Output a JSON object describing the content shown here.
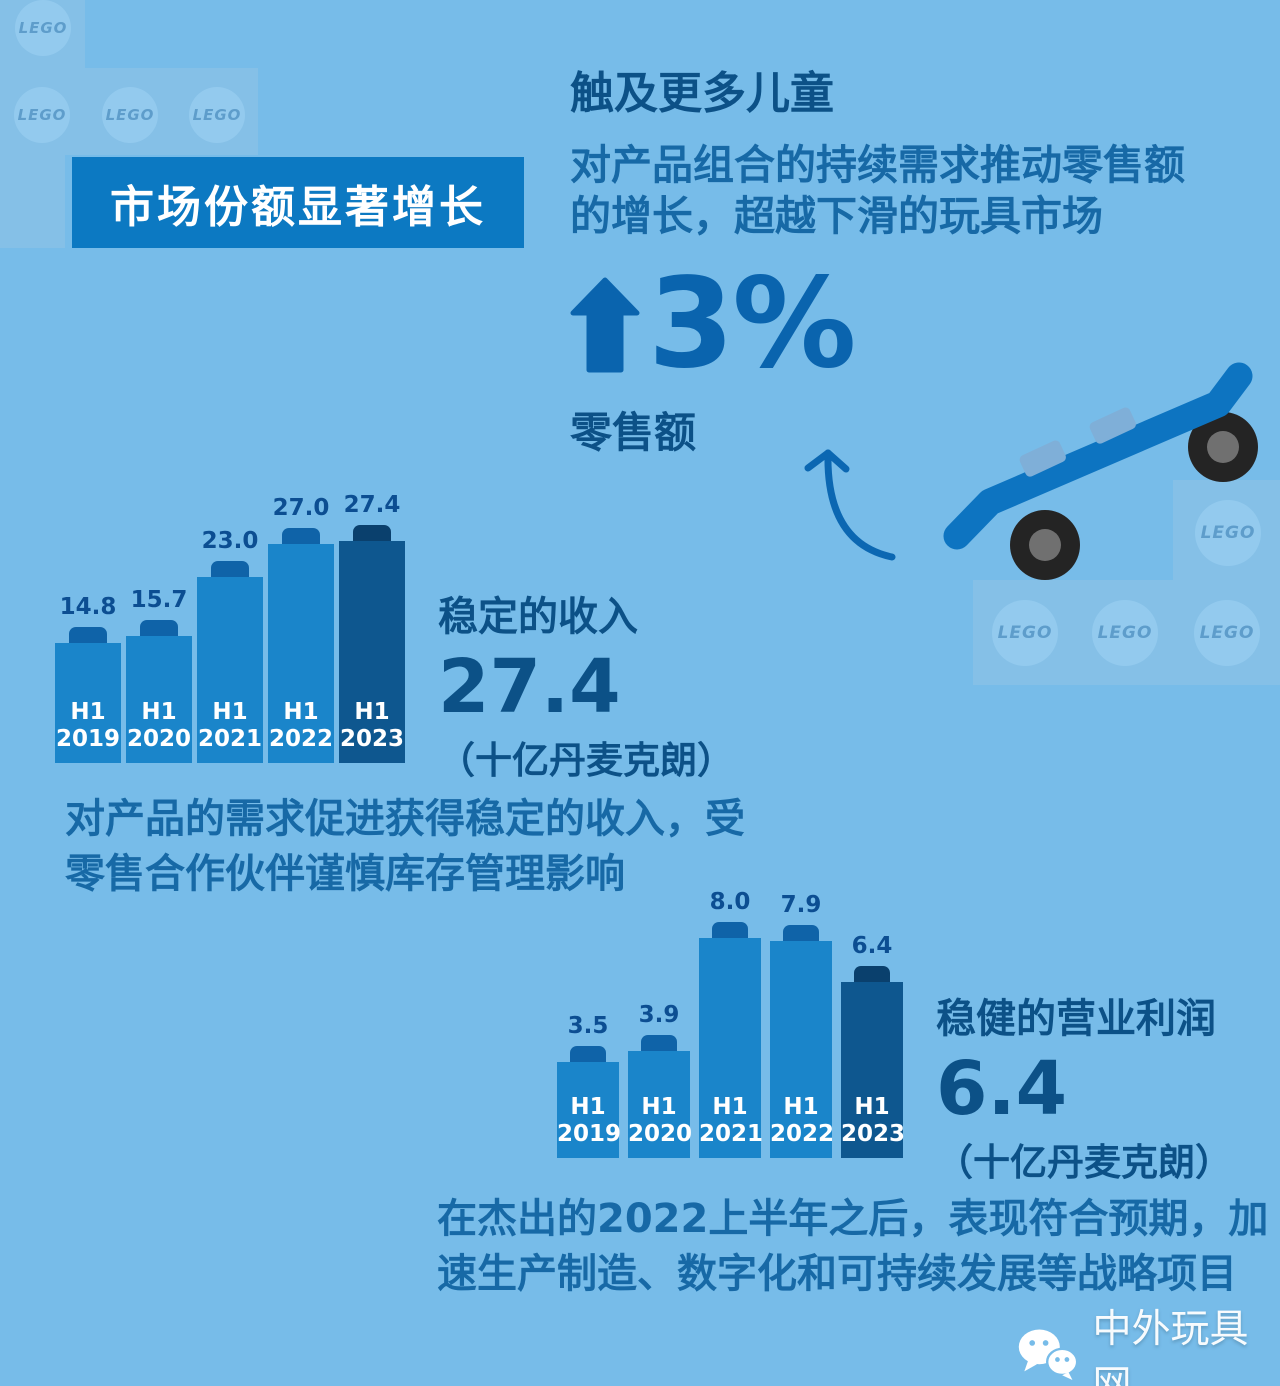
{
  "background_color": "#77BCE9",
  "brand_stud_text": "LEGO",
  "badge": {
    "label": "市场份额显著增长",
    "bg_color": "#0C79C2"
  },
  "reach": {
    "heading": "触及更多儿童",
    "body_lines": [
      "对产品组合的持续需求推动零售额",
      "的增长，超越下滑的玩具市场"
    ],
    "stat_direction": "up",
    "stat_value": "3%",
    "stat_caption": "零售额",
    "accent_color": "#0A64AE"
  },
  "chart_data": [
    {
      "id": "revenue",
      "type": "bar",
      "title": "稳定的收入",
      "categories": [
        "H1 2019",
        "H1 2020",
        "H1 2021",
        "H1 2022",
        "H1 2023"
      ],
      "values": [
        14.8,
        15.7,
        23.0,
        27.0,
        27.4
      ],
      "value_labels": [
        "14.8",
        "15.7",
        "23.0",
        "27.0",
        "27.4"
      ],
      "highlight_value": "27.4",
      "unit_label": "（十亿丹麦克朗）",
      "note_lines": [
        "对产品的需求促进获得稳定的收入，受",
        "零售合作伙伴谨慎库存管理影响"
      ],
      "ylim": [
        0,
        27.4
      ],
      "grid": false,
      "legend_position": "right",
      "bar_color": "#1A85CA",
      "bar_stud_color": "#0F63A8",
      "final_bar_color": "#0E578F",
      "final_bar_stud_color": "#0A406D",
      "value_label_color": "#0C4E92"
    },
    {
      "id": "operating-profit",
      "type": "bar",
      "title": "稳健的营业利润",
      "categories": [
        "H1 2019",
        "H1 2020",
        "H1 2021",
        "H1 2022",
        "H1 2023"
      ],
      "values": [
        3.5,
        3.9,
        8.0,
        7.9,
        6.4
      ],
      "value_labels": [
        "3.5",
        "3.9",
        "8.0",
        "7.9",
        "6.4"
      ],
      "highlight_value": "6.4",
      "unit_label": "（十亿丹麦克朗）",
      "note_lines": [
        "在杰出的2022上半年之后，表现符合预期，加",
        "速生产制造、数字化和可持续发展等战略项目"
      ],
      "ylim": [
        0,
        8.0
      ],
      "grid": false,
      "legend_position": "right",
      "bar_color": "#1A85CA",
      "bar_stud_color": "#0F63A8",
      "final_bar_color": "#0E578F",
      "final_bar_stud_color": "#0A406D",
      "value_label_color": "#0C4E92"
    }
  ],
  "watermark": {
    "label": "中外玩具网",
    "icon": "wechat-icon"
  }
}
